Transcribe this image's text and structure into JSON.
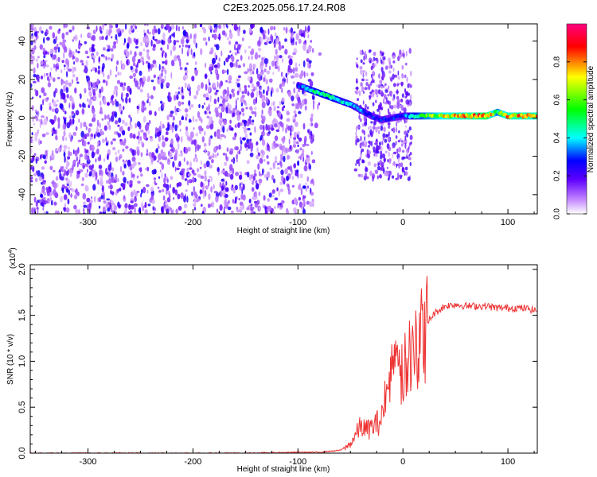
{
  "title": "C2E3.2025.056.17.24.R08",
  "chart_data": [
    {
      "type": "heatmap",
      "xlabel": "Height of straight line (km)",
      "ylabel": "Frequency (Hz)",
      "xlim": [
        -355,
        128
      ],
      "ylim": [
        -50,
        49
      ],
      "xticks": [
        -300,
        -200,
        -100,
        0,
        100
      ],
      "xtick_labels": [
        "-300",
        "-200",
        "-100",
        "0",
        "100"
      ],
      "yticks": [
        -40,
        -20,
        0,
        20,
        40
      ],
      "ytick_labels": [
        "-40",
        "-20",
        "0",
        "20",
        "40"
      ],
      "colorbar": {
        "label": "Normalized spectral amplitude",
        "range": [
          0.0,
          1.0
        ],
        "ticks": [
          0.0,
          0.2,
          0.4,
          0.6,
          0.8
        ],
        "tick_labels": [
          "0.0",
          "0.2",
          "0.4",
          "0.6",
          "0.8"
        ],
        "colors": [
          "#ffffff",
          "#8000ff",
          "#0000ff",
          "#00ffff",
          "#00ff00",
          "#ffff00",
          "#ff0000",
          "#ff00ff"
        ]
      },
      "noise_region": {
        "x": [
          -355,
          -85
        ],
        "f": [
          -50,
          49
        ],
        "amplitude": 0.25
      },
      "secondary_noise_region": {
        "x": [
          -45,
          8
        ],
        "f": [
          -32,
          35
        ],
        "amplitude": 0.18
      },
      "signal_trace": {
        "x": [
          -100,
          -90,
          -80,
          -70,
          -60,
          -50,
          -40,
          -30,
          -20,
          -10,
          0,
          10,
          20,
          40,
          60,
          80,
          90,
          100,
          128
        ],
        "frequency": [
          17,
          15,
          13,
          11,
          9,
          7,
          4,
          1,
          -1,
          0,
          1,
          1,
          1,
          1,
          1,
          1,
          3,
          1,
          1
        ],
        "amplitude": [
          0.3,
          0.45,
          0.5,
          0.5,
          0.45,
          0.4,
          0.35,
          0.3,
          0.3,
          0.3,
          0.3,
          0.5,
          0.6,
          0.75,
          0.8,
          0.9,
          0.6,
          0.8,
          0.8
        ]
      }
    },
    {
      "type": "line",
      "xlabel": "Height of straight line (km)",
      "ylabel": "SNR (10 * v/v)",
      "scale_label": "(x10",
      "scale_exponent": "4",
      "scale_close": ")",
      "xlim": [
        -355,
        128
      ],
      "ylim": [
        0,
        2.05
      ],
      "xticks": [
        -300,
        -200,
        -100,
        0,
        100
      ],
      "xtick_labels": [
        "-300",
        "-200",
        "-100",
        "0",
        "100"
      ],
      "yticks": [
        0.0,
        0.5,
        1.0,
        1.5,
        2.0
      ],
      "ytick_labels": [
        "0.0",
        "0.5",
        "1.0",
        "1.5",
        "2.0"
      ],
      "color": "#ee3333",
      "series": [
        {
          "x": [
            -355,
            -300,
            -250,
            -200,
            -150,
            -100,
            -80,
            -70,
            -60,
            -55,
            -50,
            -45,
            -40,
            -35,
            -30,
            -25,
            -20,
            -17,
            -15,
            -12,
            -10,
            -5,
            0,
            5,
            10,
            12,
            15,
            20,
            25,
            30,
            40,
            50,
            60,
            70,
            80,
            90,
            100,
            110,
            120,
            128
          ],
          "y": [
            0.0,
            0.0,
            0.0,
            0.0,
            0.0,
            0.01,
            0.01,
            0.02,
            0.03,
            0.06,
            0.1,
            0.2,
            0.3,
            0.25,
            0.28,
            0.32,
            0.38,
            0.8,
            0.6,
            0.9,
            0.8,
            0.9,
            0.85,
            1.0,
            1.1,
            1.2,
            1.25,
            1.3,
            1.45,
            1.52,
            1.6,
            1.62,
            1.6,
            1.6,
            1.6,
            1.58,
            1.58,
            1.58,
            1.57,
            1.55
          ]
        }
      ]
    }
  ]
}
